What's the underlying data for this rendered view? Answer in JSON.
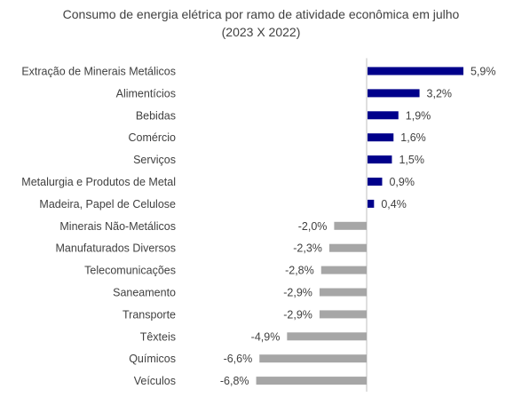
{
  "chart_data": {
    "type": "bar",
    "orientation": "horizontal",
    "title": "Consumo de energia elétrica por ramo de atividade econômica em julho",
    "subtitle": "(2023 X 2022)",
    "xlabel": "",
    "ylabel": "",
    "grid": false,
    "xlim": [
      -6.8,
      5.9
    ],
    "categories": [
      "Extração de Minerais Metálicos",
      "Alimentícios",
      "Bebidas",
      "Comércio",
      "Serviços",
      "Metalurgia e Produtos de Metal",
      "Madeira, Papel de Celulose",
      "Minerais Não-Metálicos",
      "Manufaturados Diversos",
      "Telecomunicações",
      "Saneamento",
      "Transporte",
      "Têxteis",
      "Químicos",
      "Veículos"
    ],
    "values": [
      5.9,
      3.2,
      1.9,
      1.6,
      1.5,
      0.9,
      0.4,
      -2.0,
      -2.3,
      -2.8,
      -2.9,
      -2.9,
      -4.9,
      -6.6,
      -6.8
    ],
    "value_labels": [
      "5,9%",
      "3,2%",
      "1,9%",
      "1,6%",
      "1,5%",
      "0,9%",
      "0,4%",
      "-2,0%",
      "-2,3%",
      "-2,8%",
      "-2,9%",
      "-2,9%",
      "-4,9%",
      "-6,6%",
      "-6,8%"
    ],
    "colors": {
      "positive": "#00008B",
      "negative": "#A6A6A6",
      "axis": "#BFBFBF",
      "text": "#404040"
    }
  }
}
